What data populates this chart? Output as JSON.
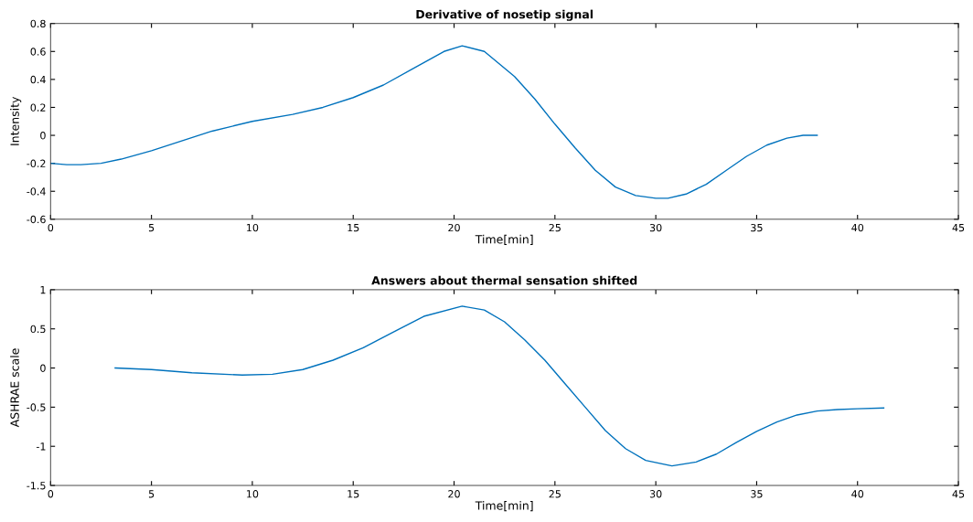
{
  "chart_data": [
    {
      "type": "line",
      "title": "Derivative of nosetip signal",
      "xlabel": "Time[min]",
      "ylabel": "Intensity",
      "xlim": [
        0,
        45
      ],
      "xticks": [
        0,
        5,
        10,
        15,
        20,
        25,
        30,
        35,
        40,
        45
      ],
      "ylim": [
        -0.6,
        0.8
      ],
      "yticks": [
        -0.6,
        -0.4,
        -0.2,
        0,
        0.2,
        0.4,
        0.6,
        0.8
      ],
      "grid": false,
      "legend": false,
      "series": [
        {
          "color": "#0072bd",
          "x": [
            0,
            0.8,
            1.5,
            2.5,
            3.5,
            5,
            6.5,
            8,
            10,
            12,
            13.5,
            15,
            16.5,
            18,
            19.5,
            20.4,
            21.5,
            23,
            24,
            25,
            26,
            27,
            28,
            29,
            30,
            30.6,
            31.5,
            32.5,
            33.5,
            34.5,
            35.5,
            36.5,
            37.3,
            38
          ],
          "values": [
            -0.2,
            -0.21,
            -0.21,
            -0.2,
            -0.17,
            -0.11,
            -0.04,
            0.03,
            0.1,
            0.15,
            0.2,
            0.27,
            0.36,
            0.48,
            0.6,
            0.64,
            0.6,
            0.42,
            0.26,
            0.08,
            -0.09,
            -0.25,
            -0.37,
            -0.43,
            -0.45,
            -0.45,
            -0.42,
            -0.35,
            -0.25,
            -0.15,
            -0.07,
            -0.02,
            0,
            0
          ]
        }
      ]
    },
    {
      "type": "line",
      "title": "Answers about thermal sensation shifted",
      "xlabel": "Time[min]",
      "ylabel": "ASHRAE scale",
      "xlim": [
        0,
        45
      ],
      "xticks": [
        0,
        5,
        10,
        15,
        20,
        25,
        30,
        35,
        40,
        45
      ],
      "ylim": [
        -1.5,
        1
      ],
      "yticks": [
        -1.5,
        -1,
        -0.5,
        0,
        0.5,
        1
      ],
      "grid": false,
      "legend": false,
      "series": [
        {
          "color": "#0072bd",
          "x": [
            3.2,
            5,
            7,
            9.5,
            11,
            12.5,
            14,
            15.5,
            17,
            18.5,
            20.4,
            21.5,
            22.5,
            23.5,
            24.5,
            25.5,
            26.5,
            27.5,
            28.5,
            29.5,
            30.8,
            32,
            33,
            34,
            35,
            36,
            37,
            38,
            39,
            40,
            41.3
          ],
          "values": [
            0,
            -0.02,
            -0.06,
            -0.09,
            -0.08,
            -0.02,
            0.1,
            0.26,
            0.46,
            0.66,
            0.79,
            0.74,
            0.59,
            0.36,
            0.1,
            -0.2,
            -0.5,
            -0.8,
            -1.03,
            -1.18,
            -1.25,
            -1.2,
            -1.1,
            -0.95,
            -0.81,
            -0.69,
            -0.6,
            -0.55,
            -0.53,
            -0.52,
            -0.51
          ]
        }
      ]
    }
  ]
}
